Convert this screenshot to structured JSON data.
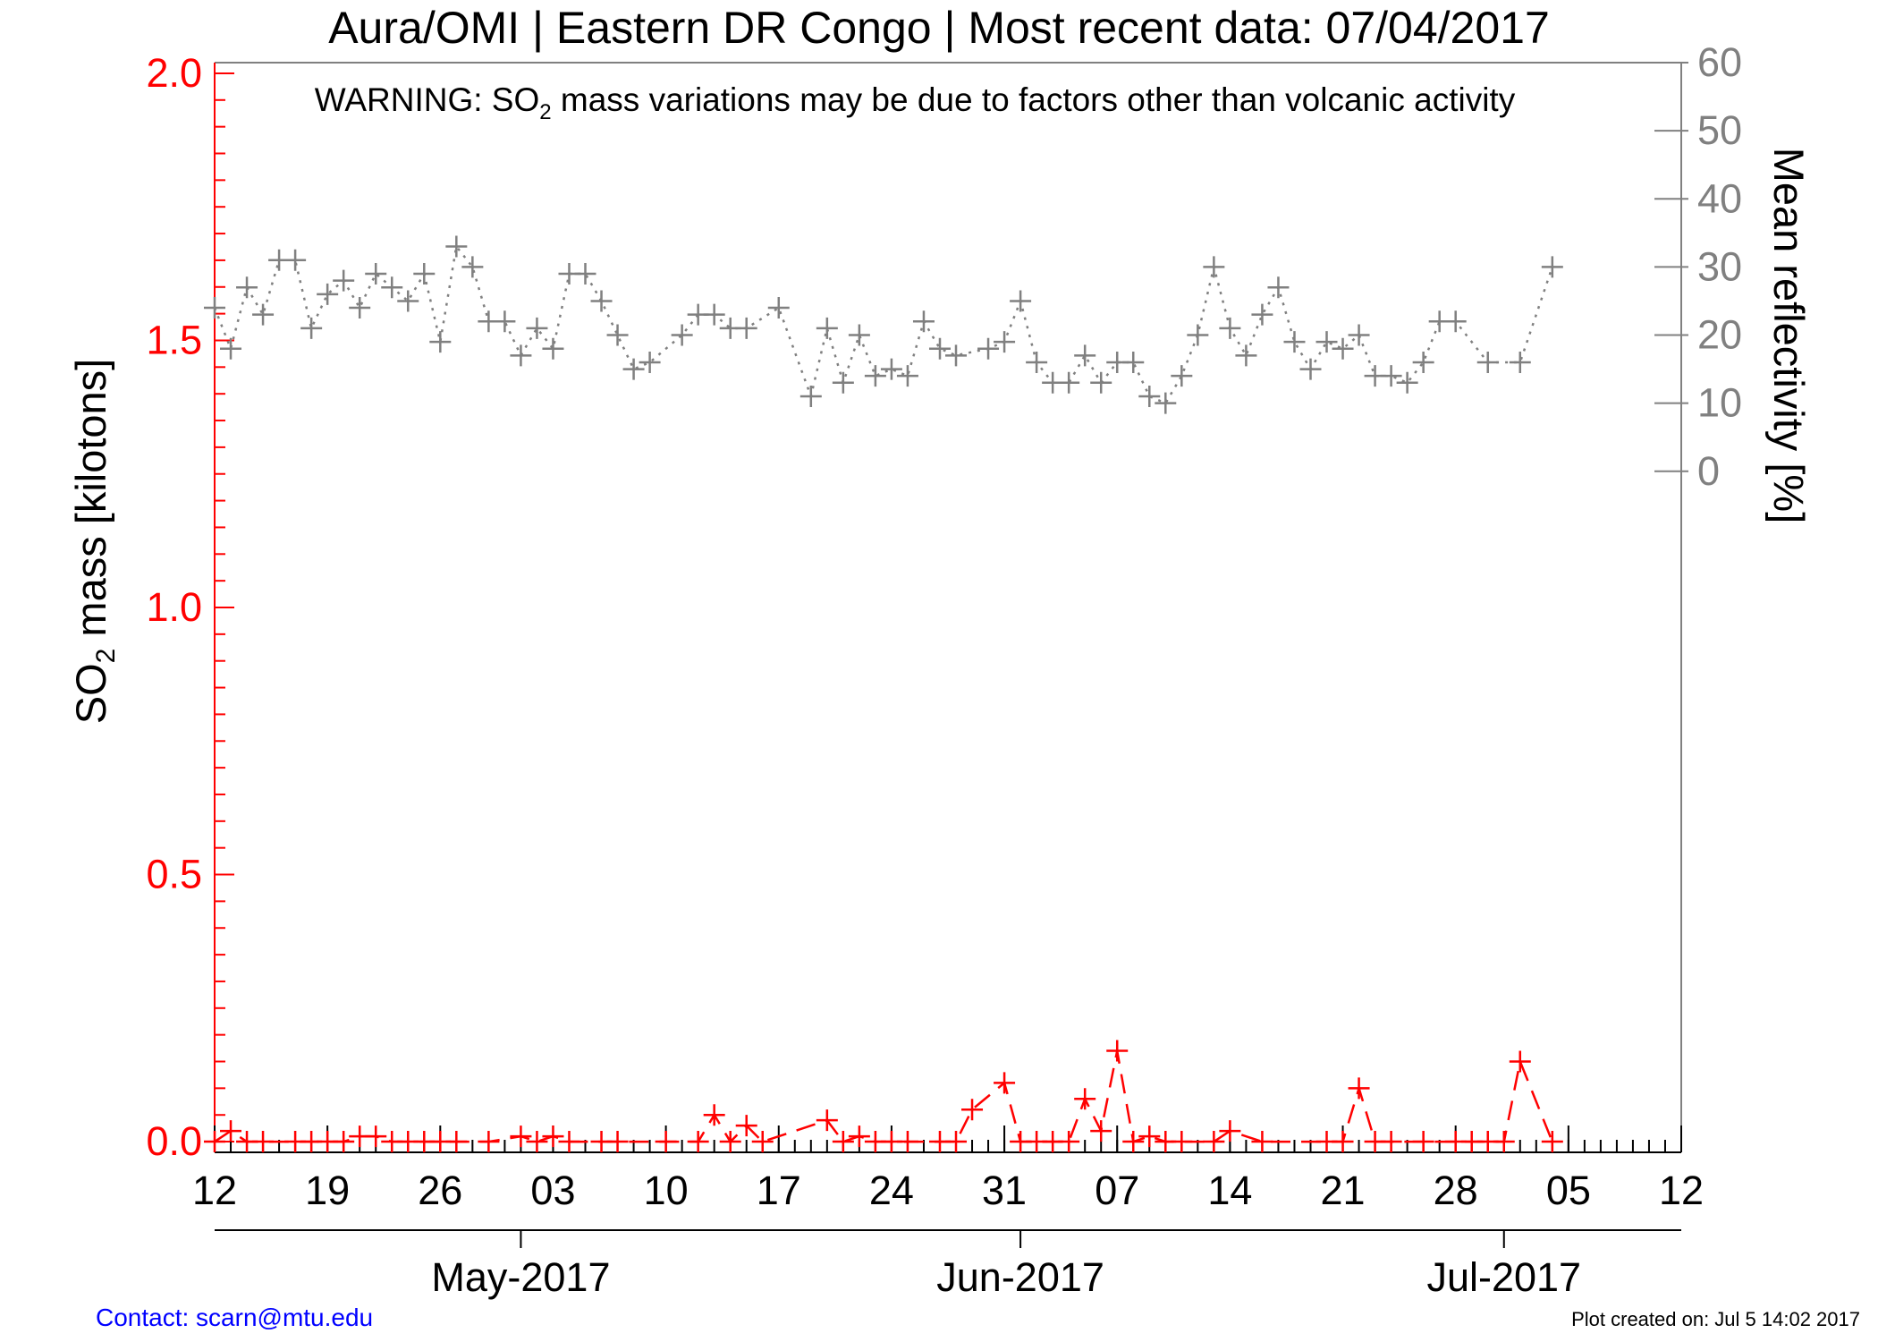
{
  "colors": {
    "so2": "#ff0000",
    "reflectivity": "#808080",
    "axis": "#000000",
    "contact": "#0000ff"
  },
  "chart_data": {
    "type": "line",
    "title": "Aura/OMI | Eastern DR Congo | Most recent data: 07/04/2017",
    "warning": {
      "prefix": "WARNING: SO",
      "subscript": "2",
      "suffix": " mass variations may be due to factors other than volcanic activity"
    },
    "ylabel": {
      "prefix": "SO",
      "subscript": "2",
      "suffix": " mass [kilotons]"
    },
    "ylabel_right": "Mean reflectivity [%]",
    "ylim": [
      -0.02,
      2.02
    ],
    "ylim_right": [
      -100,
      60
    ],
    "yticks": [
      0.0,
      0.5,
      1.0,
      1.5,
      2.0
    ],
    "yticklabels": [
      "0.0",
      "0.5",
      "1.0",
      "1.5",
      "2.0"
    ],
    "yticks_right": [
      0,
      10,
      20,
      30,
      40,
      50,
      60
    ],
    "yticklabels_right": [
      "0",
      "10",
      "20",
      "30",
      "40",
      "50",
      "60"
    ],
    "xlim": [
      "2017-04-12",
      "2017-07-12"
    ],
    "xticks": [
      "2017-04-12",
      "2017-04-19",
      "2017-04-26",
      "2017-05-03",
      "2017-05-10",
      "2017-05-17",
      "2017-05-24",
      "2017-05-31",
      "2017-06-07",
      "2017-06-14",
      "2017-06-21",
      "2017-06-28",
      "2017-07-05",
      "2017-07-12"
    ],
    "xticklabels": [
      "12",
      "19",
      "26",
      "03",
      "10",
      "17",
      "24",
      "31",
      "07",
      "14",
      "21",
      "28",
      "05",
      "12"
    ],
    "month_ticks": [
      "2017-05-01",
      "2017-06-01",
      "2017-07-01"
    ],
    "month_labels": [
      "May-2017",
      "Jun-2017",
      "Jul-2017"
    ],
    "series": [
      {
        "name": "SO2 mass",
        "axis": "left",
        "style": "dashed-cross",
        "points": [
          [
            "2017-04-12",
            0.0
          ],
          [
            "2017-04-13",
            0.02
          ],
          [
            "2017-04-14",
            0.0
          ],
          [
            "2017-04-15",
            0.0
          ],
          [
            "2017-04-17",
            0.0
          ],
          [
            "2017-04-18",
            0.0
          ],
          [
            "2017-04-19",
            0.0
          ],
          [
            "2017-04-20",
            0.0
          ],
          [
            "2017-04-21",
            0.01
          ],
          [
            "2017-04-22",
            0.01
          ],
          [
            "2017-04-23",
            0.0
          ],
          [
            "2017-04-24",
            0.0
          ],
          [
            "2017-04-25",
            0.0
          ],
          [
            "2017-04-26",
            0.0
          ],
          [
            "2017-04-27",
            0.0
          ],
          [
            "2017-04-29",
            0.0
          ],
          [
            "2017-05-01",
            0.01
          ],
          [
            "2017-05-02",
            0.0
          ],
          [
            "2017-05-03",
            0.01
          ],
          [
            "2017-05-04",
            0.0
          ],
          [
            "2017-05-06",
            0.0
          ],
          [
            "2017-05-07",
            0.0
          ],
          [
            "2017-05-10",
            0.0
          ],
          [
            "2017-05-12",
            0.0
          ],
          [
            "2017-05-13",
            0.05
          ],
          [
            "2017-05-14",
            0.0
          ],
          [
            "2017-05-15",
            0.03
          ],
          [
            "2017-05-16",
            0.0
          ],
          [
            "2017-05-20",
            0.04
          ],
          [
            "2017-05-21",
            0.0
          ],
          [
            "2017-05-22",
            0.01
          ],
          [
            "2017-05-23",
            0.0
          ],
          [
            "2017-05-24",
            0.0
          ],
          [
            "2017-05-25",
            0.0
          ],
          [
            "2017-05-27",
            0.0
          ],
          [
            "2017-05-28",
            0.0
          ],
          [
            "2017-05-29",
            0.06
          ],
          [
            "2017-05-31",
            0.11
          ],
          [
            "2017-06-01",
            0.0
          ],
          [
            "2017-06-02",
            0.0
          ],
          [
            "2017-06-03",
            0.0
          ],
          [
            "2017-06-04",
            0.0
          ],
          [
            "2017-06-05",
            0.08
          ],
          [
            "2017-06-06",
            0.02
          ],
          [
            "2017-06-07",
            0.17
          ],
          [
            "2017-06-08",
            0.0
          ],
          [
            "2017-06-09",
            0.01
          ],
          [
            "2017-06-10",
            0.0
          ],
          [
            "2017-06-11",
            0.0
          ],
          [
            "2017-06-13",
            0.0
          ],
          [
            "2017-06-14",
            0.02
          ],
          [
            "2017-06-16",
            0.0
          ],
          [
            "2017-06-20",
            0.0
          ],
          [
            "2017-06-21",
            0.0
          ],
          [
            "2017-06-22",
            0.1
          ],
          [
            "2017-06-23",
            0.0
          ],
          [
            "2017-06-24",
            0.0
          ],
          [
            "2017-06-26",
            0.0
          ],
          [
            "2017-06-28",
            0.0
          ],
          [
            "2017-06-29",
            0.0
          ],
          [
            "2017-06-30",
            0.0
          ],
          [
            "2017-07-01",
            0.0
          ],
          [
            "2017-07-02",
            0.15
          ],
          [
            "2017-07-04",
            0.0
          ]
        ]
      },
      {
        "name": "Mean reflectivity",
        "axis": "right",
        "style": "dotted-cross",
        "points": [
          [
            "2017-04-12",
            24
          ],
          [
            "2017-04-13",
            18
          ],
          [
            "2017-04-14",
            27
          ],
          [
            "2017-04-15",
            23
          ],
          [
            "2017-04-16",
            31
          ],
          [
            "2017-04-17",
            31
          ],
          [
            "2017-04-18",
            21
          ],
          [
            "2017-04-19",
            26
          ],
          [
            "2017-04-20",
            28
          ],
          [
            "2017-04-21",
            24
          ],
          [
            "2017-04-22",
            29
          ],
          [
            "2017-04-23",
            27
          ],
          [
            "2017-04-24",
            25
          ],
          [
            "2017-04-25",
            29
          ],
          [
            "2017-04-26",
            19
          ],
          [
            "2017-04-27",
            33
          ],
          [
            "2017-04-28",
            30
          ],
          [
            "2017-04-29",
            22
          ],
          [
            "2017-04-30",
            22
          ],
          [
            "2017-05-01",
            17
          ],
          [
            "2017-05-02",
            21
          ],
          [
            "2017-05-03",
            18
          ],
          [
            "2017-05-04",
            29
          ],
          [
            "2017-05-05",
            29
          ],
          [
            "2017-05-06",
            25
          ],
          [
            "2017-05-07",
            20
          ],
          [
            "2017-05-08",
            15
          ],
          [
            "2017-05-09",
            16
          ],
          [
            "2017-05-11",
            20
          ],
          [
            "2017-05-12",
            23
          ],
          [
            "2017-05-13",
            23
          ],
          [
            "2017-05-14",
            21
          ],
          [
            "2017-05-15",
            21
          ],
          [
            "2017-05-17",
            24
          ],
          [
            "2017-05-19",
            11
          ],
          [
            "2017-05-20",
            21
          ],
          [
            "2017-05-21",
            13
          ],
          [
            "2017-05-22",
            20
          ],
          [
            "2017-05-23",
            14
          ],
          [
            "2017-05-24",
            15
          ],
          [
            "2017-05-25",
            14
          ],
          [
            "2017-05-26",
            22
          ],
          [
            "2017-05-27",
            18
          ],
          [
            "2017-05-28",
            17
          ],
          [
            "2017-05-30",
            18
          ],
          [
            "2017-05-31",
            19
          ],
          [
            "2017-06-01",
            25
          ],
          [
            "2017-06-02",
            16
          ],
          [
            "2017-06-03",
            13
          ],
          [
            "2017-06-04",
            13
          ],
          [
            "2017-06-05",
            17
          ],
          [
            "2017-06-06",
            13
          ],
          [
            "2017-06-07",
            16
          ],
          [
            "2017-06-08",
            16
          ],
          [
            "2017-06-09",
            11
          ],
          [
            "2017-06-10",
            10
          ],
          [
            "2017-06-11",
            14
          ],
          [
            "2017-06-12",
            20
          ],
          [
            "2017-06-13",
            30
          ],
          [
            "2017-06-14",
            21
          ],
          [
            "2017-06-15",
            17
          ],
          [
            "2017-06-16",
            23
          ],
          [
            "2017-06-17",
            27
          ],
          [
            "2017-06-18",
            19
          ],
          [
            "2017-06-19",
            15
          ],
          [
            "2017-06-20",
            19
          ],
          [
            "2017-06-21",
            18
          ],
          [
            "2017-06-22",
            20
          ],
          [
            "2017-06-23",
            14
          ],
          [
            "2017-06-24",
            14
          ],
          [
            "2017-06-25",
            13
          ],
          [
            "2017-06-26",
            16
          ],
          [
            "2017-06-27",
            22
          ],
          [
            "2017-06-28",
            22
          ],
          [
            "2017-06-30",
            16
          ],
          [
            "2017-07-02",
            16
          ],
          [
            "2017-07-04",
            30
          ]
        ]
      }
    ]
  },
  "footer": {
    "contact": "Contact: scarn@mtu.edu",
    "created": "Plot created on: Jul  5 14:02 2017"
  }
}
